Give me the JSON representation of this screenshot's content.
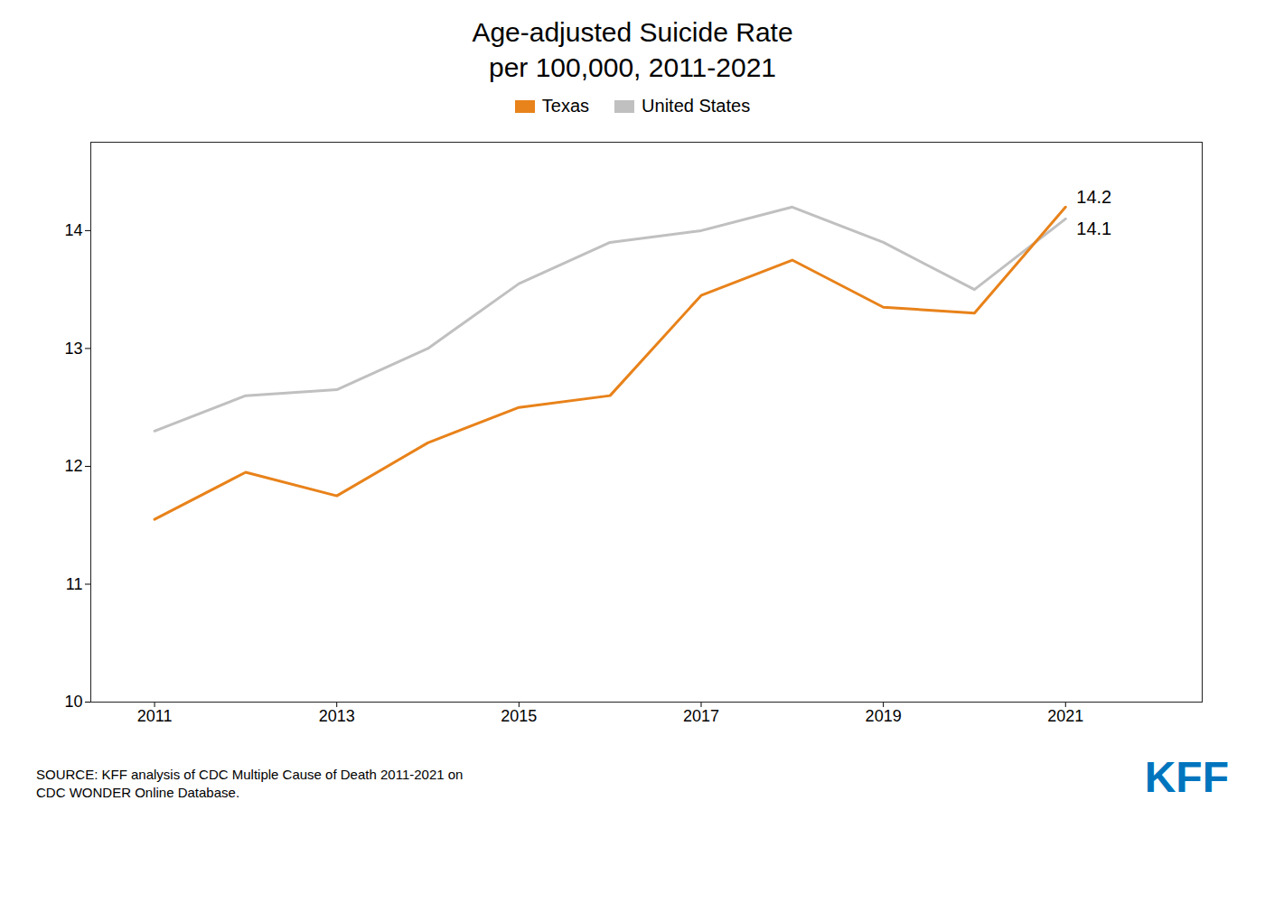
{
  "chart_data": {
    "type": "line",
    "title": "Age-adjusted Suicide Rate\nper 100,000, 2011-2021",
    "x": [
      2011,
      2012,
      2013,
      2014,
      2015,
      2016,
      2017,
      2018,
      2019,
      2020,
      2021
    ],
    "series": [
      {
        "name": "Texas",
        "color": "#E8821A",
        "values": [
          11.55,
          11.95,
          11.75,
          12.2,
          12.5,
          12.6,
          13.45,
          13.75,
          13.35,
          13.3,
          14.2
        ]
      },
      {
        "name": "United States",
        "color": "#C0C0C0",
        "values": [
          12.3,
          12.6,
          12.65,
          13.0,
          13.55,
          13.9,
          14.0,
          14.2,
          13.9,
          13.5,
          14.1
        ]
      }
    ],
    "annotations": [
      {
        "text": "14.2",
        "x": 2021,
        "y": 14.2
      },
      {
        "text": "14.1",
        "x": 2021,
        "y": 14.1
      }
    ],
    "xlim": [
      2010.3,
      2022.5
    ],
    "xticks": [
      2011,
      2013,
      2015,
      2017,
      2019,
      2021
    ],
    "ylim": [
      10,
      14.75
    ],
    "yticks": [
      10,
      11,
      12,
      13,
      14
    ],
    "grid": false,
    "legend": "top",
    "caption": "SOURCE: KFF analysis of CDC Multiple Cause of Death 2011-2021 on\nCDC WONDER Online Database.",
    "logo": "KFF",
    "logo_color": "#0075BE"
  }
}
